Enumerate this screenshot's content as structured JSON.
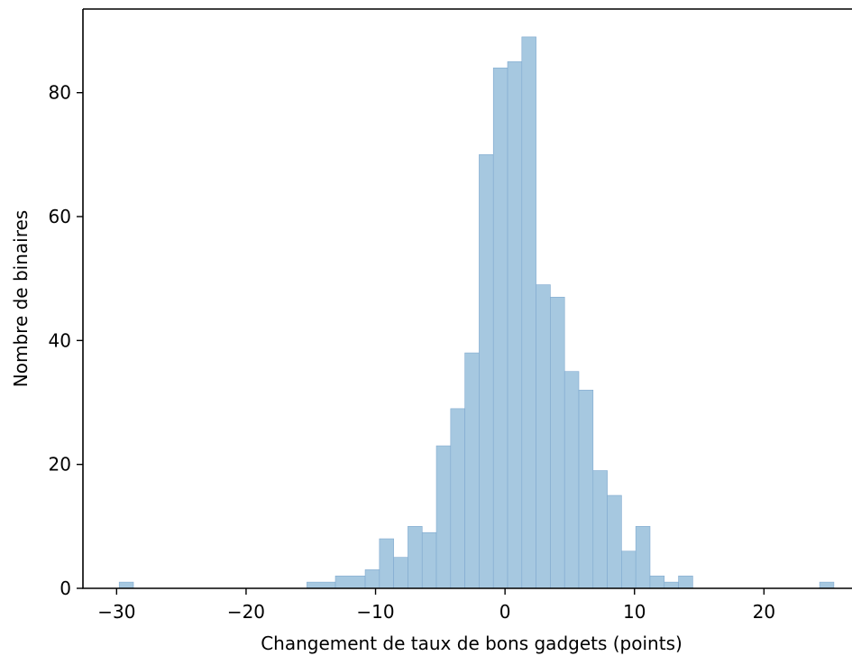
{
  "chart_data": {
    "type": "bar",
    "title": "",
    "xlabel": "Changement de taux de bons gadgets (points)",
    "ylabel": "Nombre de binaires",
    "xlim": [
      -32.6,
      26.8
    ],
    "ylim": [
      0,
      93.5
    ],
    "bin_width": 1.6,
    "color": "#a6c8e0",
    "edge_color": "#7fa9cf",
    "x_ticks": [
      {
        "value": -30,
        "label": "−30"
      },
      {
        "value": -20,
        "label": "−20"
      },
      {
        "value": -10,
        "label": "−10"
      },
      {
        "value": 0,
        "label": "0"
      },
      {
        "value": 10,
        "label": "10"
      },
      {
        "value": 20,
        "label": "20"
      }
    ],
    "y_ticks": [
      {
        "value": 0,
        "label": "0"
      },
      {
        "value": 20,
        "label": "20"
      },
      {
        "value": 40,
        "label": "40"
      },
      {
        "value": 60,
        "label": "60"
      },
      {
        "value": 80,
        "label": "80"
      }
    ],
    "bins": [
      {
        "x0": -29.8,
        "x1": -28.7,
        "count": 1
      },
      {
        "x0": -15.3,
        "x1": -13.1,
        "count": 1
      },
      {
        "x0": -13.1,
        "x1": -10.8,
        "count": 2
      },
      {
        "x0": -10.8,
        "x1": -9.7,
        "count": 3
      },
      {
        "x0": -9.7,
        "x1": -8.6,
        "count": 8
      },
      {
        "x0": -8.6,
        "x1": -7.5,
        "count": 5
      },
      {
        "x0": -7.5,
        "x1": -6.4,
        "count": 10
      },
      {
        "x0": -6.4,
        "x1": -5.3,
        "count": 9
      },
      {
        "x0": -5.3,
        "x1": -4.2,
        "count": 23
      },
      {
        "x0": -4.2,
        "x1": -3.1,
        "count": 29
      },
      {
        "x0": -3.1,
        "x1": -2.0,
        "count": 38
      },
      {
        "x0": -2.0,
        "x1": -0.9,
        "count": 70
      },
      {
        "x0": -0.9,
        "x1": 0.2,
        "count": 84
      },
      {
        "x0": 0.2,
        "x1": 1.3,
        "count": 85
      },
      {
        "x0": 1.3,
        "x1": 2.4,
        "count": 89
      },
      {
        "x0": 2.4,
        "x1": 3.5,
        "count": 49
      },
      {
        "x0": 3.5,
        "x1": 4.6,
        "count": 47
      },
      {
        "x0": 4.6,
        "x1": 5.7,
        "count": 35
      },
      {
        "x0": 5.7,
        "x1": 6.8,
        "count": 32
      },
      {
        "x0": 6.8,
        "x1": 7.9,
        "count": 19
      },
      {
        "x0": 7.9,
        "x1": 9.0,
        "count": 15
      },
      {
        "x0": 9.0,
        "x1": 10.1,
        "count": 6
      },
      {
        "x0": 10.1,
        "x1": 11.2,
        "count": 10
      },
      {
        "x0": 11.2,
        "x1": 12.3,
        "count": 2
      },
      {
        "x0": 12.3,
        "x1": 13.4,
        "count": 1
      },
      {
        "x0": 13.4,
        "x1": 14.5,
        "count": 2
      },
      {
        "x0": 24.3,
        "x1": 25.4,
        "count": 1
      }
    ]
  }
}
